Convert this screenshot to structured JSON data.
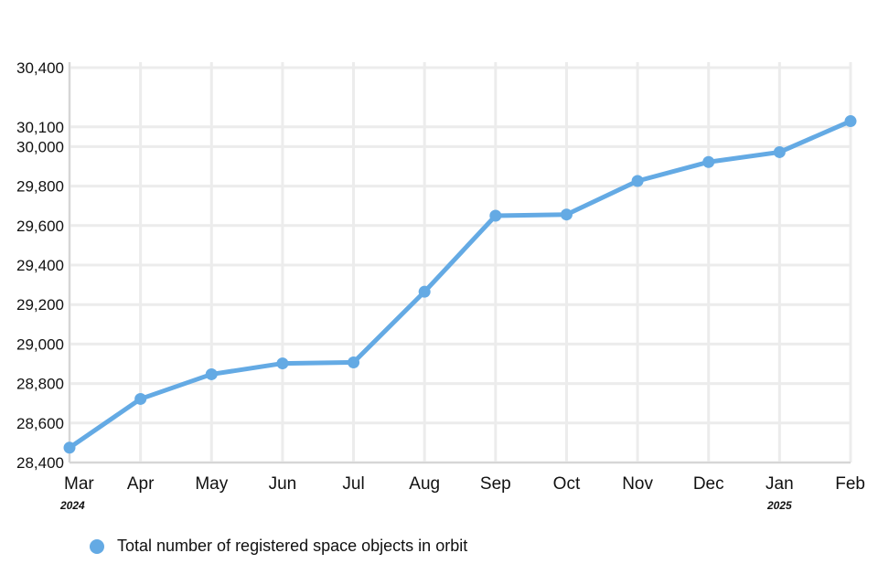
{
  "chart_data": {
    "type": "line",
    "categories": [
      "Mar",
      "Apr",
      "May",
      "Jun",
      "Jul",
      "Aug",
      "Sep",
      "Oct",
      "Nov",
      "Dec",
      "Jan",
      "Feb"
    ],
    "year_labels": [
      {
        "category": "Mar",
        "text": "2024"
      },
      {
        "category": "Jan",
        "text": "2025"
      }
    ],
    "series": [
      {
        "name": "Total number of registered space objects in orbit",
        "color": "#64aae4",
        "values": [
          28475,
          28722,
          28847,
          28902,
          28907,
          29265,
          29650,
          29656,
          29826,
          29922,
          29972,
          30129
        ]
      }
    ],
    "yticks": [
      28400,
      28600,
      28800,
      29000,
      29200,
      29400,
      29600,
      29800,
      30000,
      30100,
      30400
    ],
    "ytick_labels": [
      "28,400",
      "28,600",
      "28,800",
      "29,000",
      "29,200",
      "29,400",
      "29,600",
      "29,800",
      "30,000",
      "30,100",
      "30,400"
    ],
    "ylim": [
      28400,
      30400
    ],
    "xlabel": "",
    "ylabel": "",
    "title": "",
    "grid": true,
    "legend_position": "bottom-left"
  }
}
